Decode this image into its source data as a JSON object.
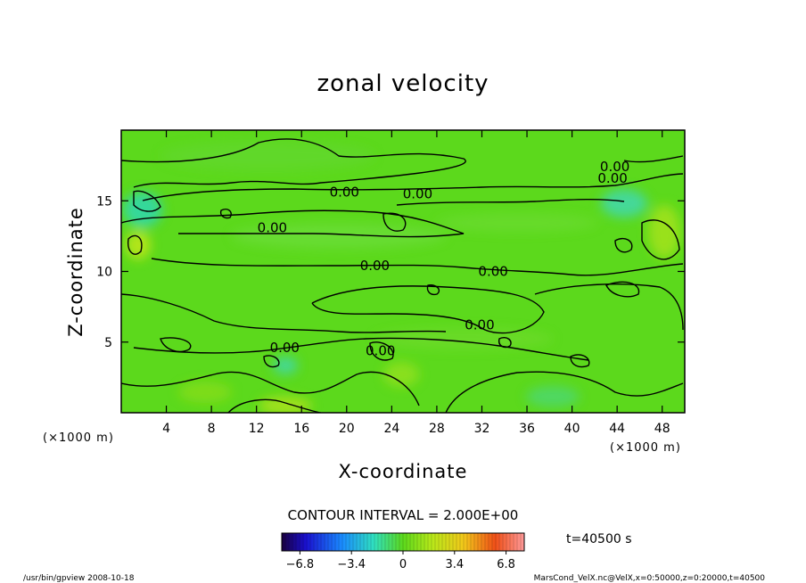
{
  "chart_data": {
    "type": "heatmap",
    "title": "zonal velocity",
    "xlabel": "X-coordinate",
    "ylabel": "Z-coordinate",
    "x_unit": "(×1000 m)",
    "y_unit": "(×1000 m)",
    "xlim": [
      0,
      50
    ],
    "ylim": [
      0,
      20
    ],
    "x_ticks": [
      4,
      8,
      12,
      16,
      20,
      24,
      28,
      32,
      36,
      40,
      44,
      48
    ],
    "y_ticks": [
      5,
      10,
      15
    ],
    "contour_interval": "CONTOUR INTERVAL = 2.000E+00",
    "contour_labels": [
      {
        "text": "0.00",
        "x": 19.8,
        "y": 15.6
      },
      {
        "text": "0.00",
        "x": 26.3,
        "y": 15.5
      },
      {
        "text": "0.00",
        "x": 43.8,
        "y": 17.4
      },
      {
        "text": "0.00",
        "x": 43.6,
        "y": 16.6
      },
      {
        "text": "0.00",
        "x": 13.4,
        "y": 13.1
      },
      {
        "text": "0.00",
        "x": 22.5,
        "y": 10.4
      },
      {
        "text": "0.00",
        "x": 33.0,
        "y": 10.0
      },
      {
        "text": "0.00",
        "x": 31.8,
        "y": 6.2
      },
      {
        "text": "0.00",
        "x": 14.5,
        "y": 4.6
      },
      {
        "text": "0.00",
        "x": 23.0,
        "y": 4.4
      }
    ],
    "colorbar": {
      "min": -8,
      "max": 8,
      "tick_labels": [
        "−6.8",
        "−3.4",
        "0",
        "3.4",
        "6.8"
      ],
      "tick_values": [
        -6.8,
        -3.4,
        0,
        3.4,
        6.8
      ]
    },
    "time_label": "t=40500 s"
  },
  "footer": {
    "left": "/usr/bin/gpview   2008-10-18",
    "right": "MarsCond_VelX.nc@VelX,x=0:50000,z=0:20000,t=40500"
  },
  "colors": {
    "field_base": "#5cd91c",
    "contour": "#000000"
  }
}
